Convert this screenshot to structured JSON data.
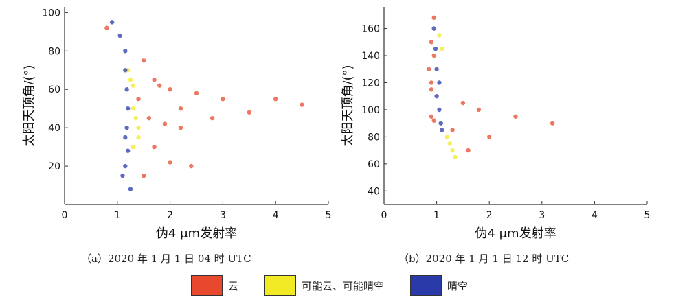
{
  "figure": {
    "legend": [
      {
        "label": "云",
        "color": "#e8492e"
      },
      {
        "label": "可能云、可能晴空",
        "color": "#f2ea24"
      },
      {
        "label": "晴空",
        "color": "#2a3aa8"
      }
    ]
  },
  "chart_data": [
    {
      "type": "scatter",
      "caption": "（a）2020 年 1 月 1 日 04 时 UTC",
      "xlabel": "伪4 μm发射率",
      "ylabel": "太阳天顶角/(°)",
      "xlim": [
        0,
        5
      ],
      "ylim": [
        0,
        103
      ],
      "xticks": [
        0,
        1,
        2,
        3,
        4,
        5
      ],
      "yticks": [
        20,
        40,
        60,
        80,
        100
      ],
      "series": [
        {
          "name": "云",
          "color": "#e8492e",
          "points": [
            [
              0.8,
              92
            ],
            [
              1.5,
              75
            ],
            [
              1.7,
              65
            ],
            [
              1.8,
              62
            ],
            [
              2.0,
              60
            ],
            [
              2.5,
              58
            ],
            [
              1.6,
              45
            ],
            [
              1.9,
              42
            ],
            [
              2.2,
              40
            ],
            [
              2.8,
              45
            ],
            [
              3.5,
              48
            ],
            [
              4.5,
              52
            ],
            [
              1.7,
              30
            ],
            [
              2.0,
              22
            ],
            [
              2.4,
              20
            ],
            [
              1.5,
              15
            ],
            [
              1.4,
              55
            ],
            [
              2.2,
              50
            ],
            [
              3.0,
              55
            ],
            [
              4.0,
              55
            ]
          ]
        },
        {
          "name": "可能云、可能晴空",
          "color": "#f2ea24",
          "points": [
            [
              1.2,
              70
            ],
            [
              1.25,
              65
            ],
            [
              1.3,
              62
            ],
            [
              1.3,
              50
            ],
            [
              1.35,
              45
            ],
            [
              1.4,
              40
            ],
            [
              1.4,
              35
            ],
            [
              1.3,
              30
            ]
          ]
        },
        {
          "name": "晴空",
          "color": "#2a3aa8",
          "points": [
            [
              0.9,
              95
            ],
            [
              1.05,
              88
            ],
            [
              1.15,
              80
            ],
            [
              1.15,
              70
            ],
            [
              1.18,
              60
            ],
            [
              1.2,
              50
            ],
            [
              1.18,
              40
            ],
            [
              1.15,
              35
            ],
            [
              1.2,
              28
            ],
            [
              1.15,
              20
            ],
            [
              1.1,
              15
            ],
            [
              1.25,
              8
            ]
          ]
        }
      ]
    },
    {
      "type": "scatter",
      "caption": "（b）2020 年 1 月 1 日 12 时 UTC",
      "xlabel": "伪4 μm发射率",
      "ylabel": "太阳天顶角/(°)",
      "xlim": [
        0,
        5
      ],
      "ylim": [
        30,
        176
      ],
      "xticks": [
        0,
        1,
        2,
        3,
        4,
        5
      ],
      "yticks": [
        40,
        60,
        80,
        100,
        120,
        140,
        160
      ],
      "series": [
        {
          "name": "云",
          "color": "#e8492e",
          "points": [
            [
              0.95,
              168
            ],
            [
              0.9,
              150
            ],
            [
              0.95,
              140
            ],
            [
              0.85,
              130
            ],
            [
              0.9,
              120
            ],
            [
              0.9,
              115
            ],
            [
              0.9,
              95
            ],
            [
              0.95,
              92
            ],
            [
              1.5,
              105
            ],
            [
              1.8,
              100
            ],
            [
              2.5,
              95
            ],
            [
              3.2,
              90
            ],
            [
              1.3,
              85
            ],
            [
              2.0,
              80
            ],
            [
              1.6,
              70
            ]
          ]
        },
        {
          "name": "可能云、可能晴空",
          "color": "#f2ea24",
          "points": [
            [
              1.05,
              155
            ],
            [
              1.1,
              145
            ],
            [
              1.2,
              80
            ],
            [
              1.25,
              75
            ],
            [
              1.3,
              70
            ],
            [
              1.35,
              65
            ]
          ]
        },
        {
          "name": "晴空",
          "color": "#2a3aa8",
          "points": [
            [
              0.95,
              160
            ],
            [
              0.98,
              145
            ],
            [
              1.0,
              130
            ],
            [
              1.05,
              120
            ],
            [
              1.0,
              110
            ],
            [
              1.05,
              100
            ],
            [
              1.08,
              90
            ],
            [
              1.1,
              85
            ]
          ]
        }
      ]
    }
  ]
}
